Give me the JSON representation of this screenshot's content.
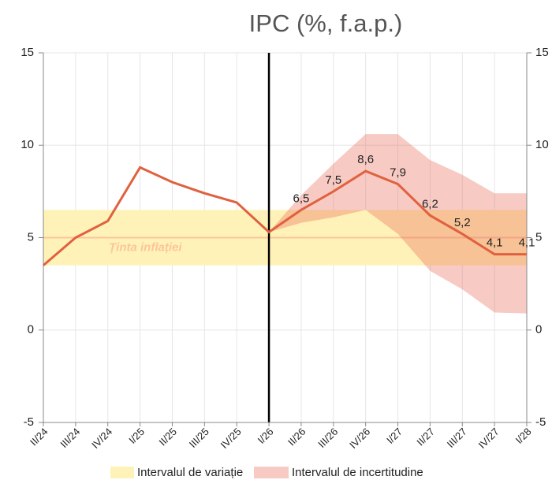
{
  "chart_data": {
    "type": "line",
    "title": "IPC (%, f.a.p.)",
    "categories": [
      "II/24",
      "III/24",
      "IV/24",
      "I/25",
      "II/25",
      "III/25",
      "IV/25",
      "I/26",
      "II/26",
      "III/26",
      "IV/26",
      "I/27",
      "II/27",
      "III/27",
      "IV/27",
      "I/28"
    ],
    "series": [
      {
        "name": "IPC",
        "color": "#e0613f",
        "values": [
          3.5,
          5.0,
          5.9,
          8.8,
          8.0,
          7.4,
          6.9,
          5.3,
          6.5,
          7.5,
          8.6,
          7.9,
          6.2,
          5.2,
          4.1,
          4.1
        ],
        "value_labels": [
          null,
          null,
          null,
          null,
          null,
          null,
          null,
          null,
          "6,5",
          "7,5",
          "8,6",
          "7,9",
          "6,2",
          "5,2",
          "4,1",
          "4,1"
        ]
      }
    ],
    "uncertainty": {
      "name": "Intervalul de incertitudine",
      "color": "#e86a55",
      "lower": [
        null,
        null,
        null,
        null,
        null,
        null,
        null,
        5.3,
        5.8,
        6.1,
        6.5,
        5.2,
        3.2,
        2.2,
        0.95,
        0.9
      ],
      "upper": [
        null,
        null,
        null,
        null,
        null,
        null,
        null,
        5.3,
        7.3,
        9.0,
        10.6,
        10.6,
        9.2,
        8.4,
        7.4,
        7.4
      ]
    },
    "target_band": {
      "name": "Intervalul de variație",
      "color": "#fff2b8",
      "lower": 3.5,
      "upper": 6.5
    },
    "target": {
      "label": "Ținta inflației",
      "value": 5,
      "color": "#fbc59a"
    },
    "forecast_start": "I/26",
    "ylim": [
      -5,
      15
    ],
    "yticks": [
      -5,
      0,
      5,
      10,
      15
    ],
    "grid": true
  }
}
